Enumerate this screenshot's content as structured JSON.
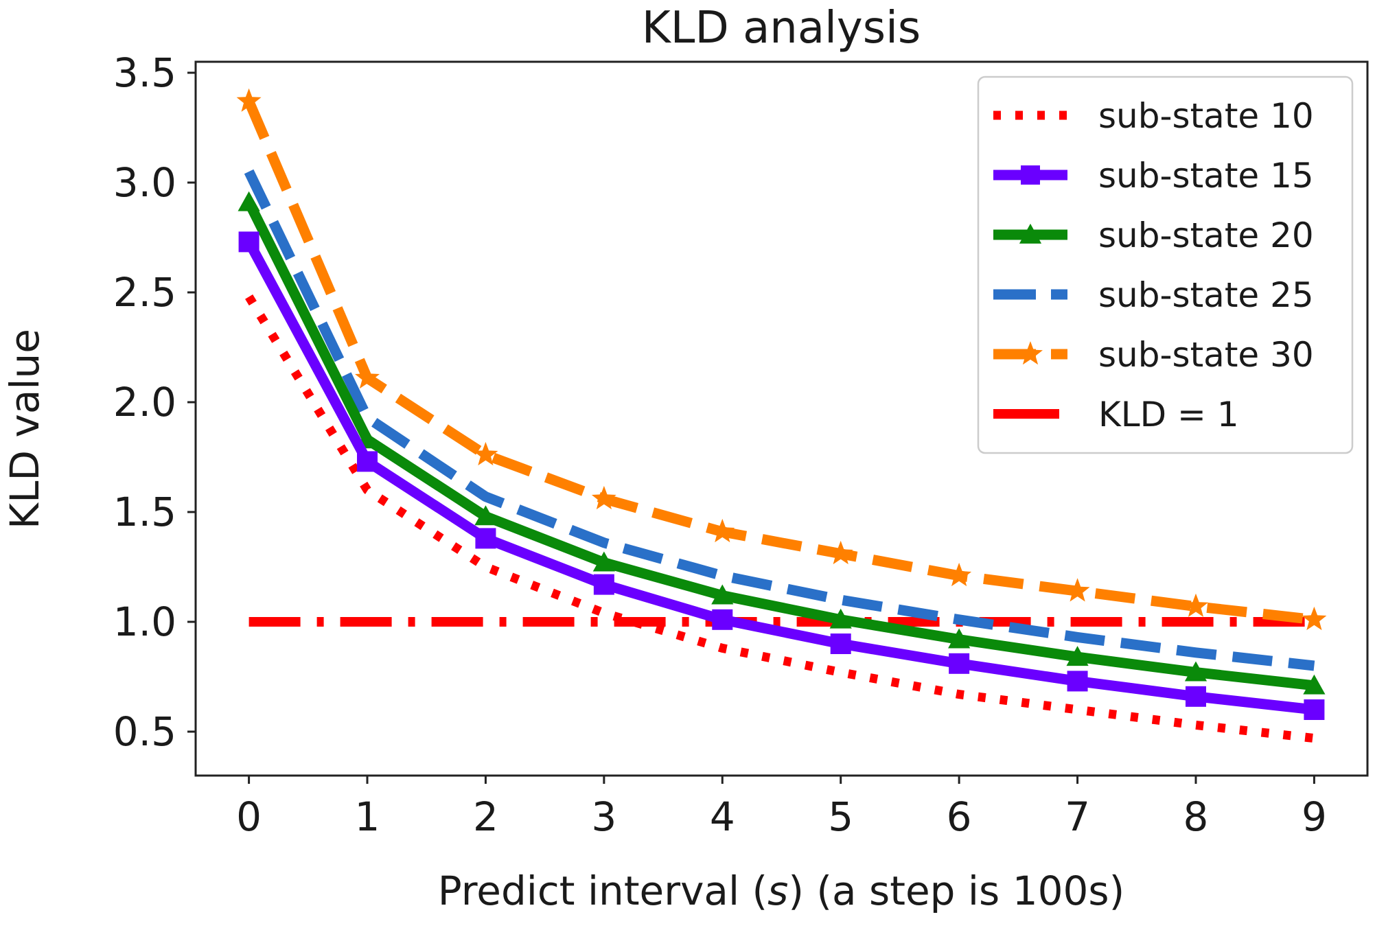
{
  "chart_data": {
    "type": "line",
    "title": "KLD analysis",
    "xlabel_prefix": "Predict interval (",
    "xlabel_var": "s",
    "xlabel_suffix": ") (a step is 100s)",
    "ylabel": "KLD value",
    "x": [
      0,
      1,
      2,
      3,
      4,
      5,
      6,
      7,
      8,
      9
    ],
    "xlim": [
      -0.45,
      9.45
    ],
    "ylim": [
      0.3,
      3.55
    ],
    "xticks": [
      "0",
      "1",
      "2",
      "3",
      "4",
      "5",
      "6",
      "7",
      "8",
      "9"
    ],
    "yticks": [
      "0.5",
      "1.0",
      "1.5",
      "2.0",
      "2.5",
      "3.0",
      "3.5"
    ],
    "ytick_values": [
      0.5,
      1.0,
      1.5,
      2.0,
      2.5,
      3.0,
      3.5
    ],
    "grid": false,
    "legend_position": "top-right",
    "series": [
      {
        "name": "sub-state 10",
        "color": "#ff0000",
        "style": "dotted",
        "marker": "none",
        "values": [
          2.48,
          1.6,
          1.25,
          1.04,
          0.88,
          0.77,
          0.67,
          0.6,
          0.53,
          0.47
        ]
      },
      {
        "name": "sub-state 15",
        "color": "#6a00ff",
        "style": "solid",
        "marker": "square",
        "values": [
          2.73,
          1.73,
          1.38,
          1.17,
          1.01,
          0.9,
          0.81,
          0.73,
          0.66,
          0.6
        ]
      },
      {
        "name": "sub-state 20",
        "color": "#0a8a0a",
        "style": "solid",
        "marker": "triangle",
        "values": [
          2.91,
          1.83,
          1.48,
          1.27,
          1.12,
          1.01,
          0.92,
          0.84,
          0.77,
          0.71
        ]
      },
      {
        "name": "sub-state 25",
        "color": "#2a70c8",
        "style": "dashed",
        "marker": "none",
        "values": [
          3.05,
          1.93,
          1.57,
          1.36,
          1.21,
          1.1,
          1.01,
          0.93,
          0.86,
          0.8
        ]
      },
      {
        "name": "sub-state 30",
        "color": "#ff8000",
        "style": "dashed",
        "marker": "star",
        "values": [
          3.37,
          2.11,
          1.76,
          1.56,
          1.41,
          1.31,
          1.21,
          1.14,
          1.07,
          1.01
        ]
      },
      {
        "name": "KLD = 1",
        "color": "#ff0000",
        "style": "dashdot",
        "marker": "none",
        "values": [
          1.0,
          1.0,
          1.0,
          1.0,
          1.0,
          1.0,
          1.0,
          1.0,
          1.0,
          1.0
        ]
      }
    ]
  }
}
